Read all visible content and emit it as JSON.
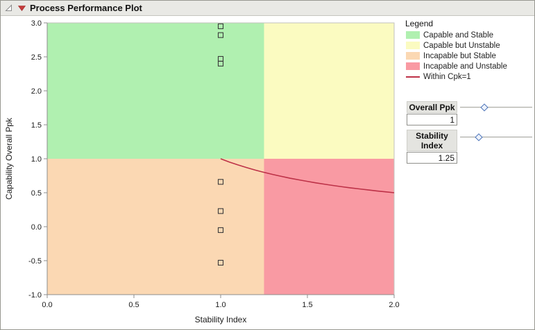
{
  "window": {
    "title": "Process Performance Plot"
  },
  "legend": {
    "title": "Legend",
    "items": [
      {
        "label": "Capable and Stable",
        "color": "#b0f0b0",
        "type": "swatch"
      },
      {
        "label": "Capable but Unstable",
        "color": "#fbfbc1",
        "type": "swatch"
      },
      {
        "label": "Incapable but Stable",
        "color": "#fbd8b3",
        "type": "swatch"
      },
      {
        "label": "Incapable and Unstable",
        "color": "#f99aa3",
        "type": "swatch"
      },
      {
        "label": "Within Cpk=1",
        "color": "#bd3147",
        "type": "line"
      }
    ]
  },
  "controls": {
    "overall_ppk": {
      "label": "Overall Ppk",
      "value": "1",
      "thumb_pct": 34
    },
    "stability_index": {
      "label": "Stability Index",
      "value": "1.25",
      "thumb_pct": 26
    }
  },
  "chart_data": {
    "type": "scatter",
    "xlabel": "Stability Index",
    "ylabel": "Capability Overall Ppk",
    "xlim": [
      0,
      2
    ],
    "ylim": [
      -1,
      3
    ],
    "xticks": [
      0.0,
      0.5,
      1.0,
      1.5,
      2.0
    ],
    "yticks": [
      -1.0,
      -0.5,
      0.0,
      0.5,
      1.0,
      1.5,
      2.0,
      2.5,
      3.0
    ],
    "marker": "open-square",
    "quadrants": {
      "x_boundary": 1.25,
      "y_boundary": 1.0,
      "colors": {
        "capable_stable": "#b0f0b0",
        "capable_unstable": "#fbfbc1",
        "incapable_stable": "#fbd8b3",
        "incapable_unstable": "#f99aa3"
      }
    },
    "points": [
      [
        1.0,
        2.95
      ],
      [
        1.0,
        2.82
      ],
      [
        1.0,
        2.47
      ],
      [
        1.0,
        2.4
      ],
      [
        1.0,
        0.66
      ],
      [
        1.0,
        0.23
      ],
      [
        1.0,
        -0.05
      ],
      [
        1.0,
        -0.53
      ]
    ],
    "curve": {
      "label": "Within Cpk=1",
      "color": "#bd3147",
      "points": [
        [
          1.0,
          1.0
        ],
        [
          1.05,
          0.952
        ],
        [
          1.1,
          0.909
        ],
        [
          1.15,
          0.87
        ],
        [
          1.2,
          0.833
        ],
        [
          1.25,
          0.8
        ],
        [
          1.3,
          0.769
        ],
        [
          1.35,
          0.741
        ],
        [
          1.4,
          0.714
        ],
        [
          1.45,
          0.69
        ],
        [
          1.5,
          0.667
        ],
        [
          1.55,
          0.645
        ],
        [
          1.6,
          0.625
        ],
        [
          1.65,
          0.606
        ],
        [
          1.7,
          0.588
        ],
        [
          1.75,
          0.571
        ],
        [
          1.8,
          0.556
        ],
        [
          1.85,
          0.541
        ],
        [
          1.9,
          0.526
        ],
        [
          1.95,
          0.513
        ],
        [
          2.0,
          0.5
        ]
      ]
    }
  }
}
